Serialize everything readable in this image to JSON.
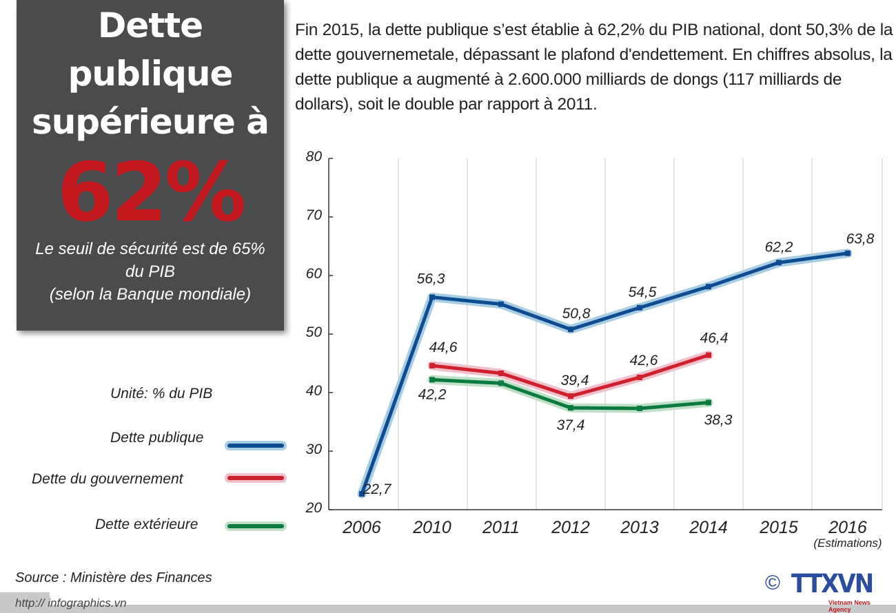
{
  "headline": {
    "line1": "Dette",
    "line2": "publique",
    "line3": "supérieure à",
    "big_number": "62%",
    "sub1": "Le seuil de sécurité est de 65%",
    "sub2": "du PIB",
    "sub3": "(selon la Banque mondiale)"
  },
  "intro": "Fin 2015, la dette publique s’est établie à 62,2% du PIB national, dont 50,3% de la dette gouvernemetale, dépassant le plafond d'endettement. En chiffres absolus, la dette publique a augmenté à 2.600.000 milliards de dongs (117 milliards de dollars), soit le double par rapport à 2011.",
  "legend": {
    "unit": "Unité: % du PIB",
    "items": [
      {
        "label": "Dette publique",
        "color": "#0e4c92",
        "halo": "#a9cde3"
      },
      {
        "label": "Dette du gouvernement",
        "color": "#d0202e",
        "halo": "#f0c0cc"
      },
      {
        "label": "Dette extérieure",
        "color": "#0b7a3e",
        "halo": "#bfe0c6"
      }
    ]
  },
  "chart_data": {
    "type": "line",
    "categories": [
      "2006",
      "2010",
      "2011",
      "2012",
      "2013",
      "2014",
      "2015",
      "2016"
    ],
    "category_note": "(Estimations)",
    "ylim": [
      20,
      80
    ],
    "yticks": [
      20,
      30,
      40,
      50,
      60,
      70,
      80
    ],
    "grid": "vertical",
    "legend_placement": "left",
    "series": [
      {
        "name": "Dette publique",
        "values": [
          22.7,
          56.3,
          55.1,
          50.8,
          54.5,
          58.1,
          62.2,
          63.8
        ],
        "labels": [
          "22,7",
          "56,3",
          null,
          "50,8",
          "54,5",
          null,
          "62,2",
          "63,8"
        ]
      },
      {
        "name": "Dette du gouvernement",
        "values": [
          null,
          44.6,
          43.3,
          39.4,
          42.6,
          46.4,
          null,
          null
        ],
        "labels": [
          null,
          "44,6",
          null,
          "39,4",
          "42,6",
          "46,4",
          null,
          null
        ]
      },
      {
        "name": "Dette extérieure",
        "values": [
          null,
          42.2,
          41.6,
          37.4,
          37.3,
          38.3,
          null,
          null
        ],
        "labels": [
          null,
          "42,2",
          null,
          "37,4",
          null,
          "38,3",
          null,
          null
        ]
      }
    ]
  },
  "footer": {
    "source": "Source :  Ministère des Finances",
    "url": "http:// infographics.vn",
    "copyright": "©",
    "logo_text": "TTXVN",
    "logo_sub": "Vietnam News Agency"
  }
}
